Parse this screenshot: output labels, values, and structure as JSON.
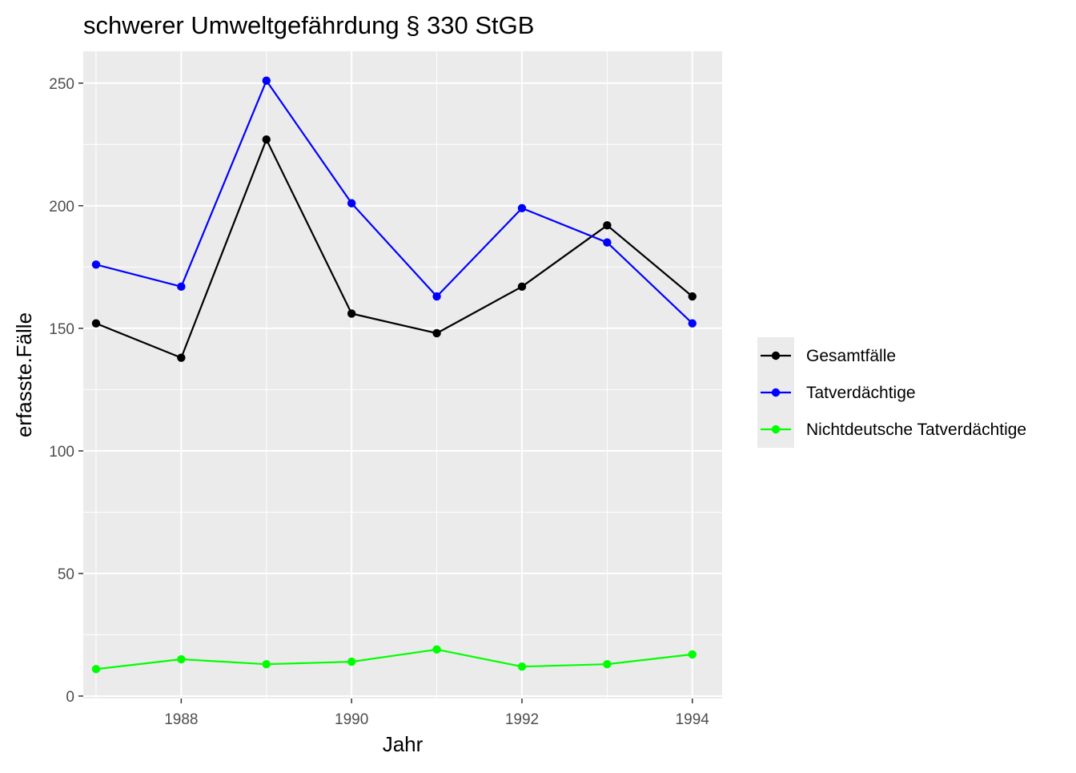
{
  "chart_data": {
    "type": "line",
    "title": "schwerer Umweltgefährdung § 330 StGB",
    "xlabel": "Jahr",
    "ylabel": "erfasste.Fälle",
    "x": [
      1987,
      1988,
      1989,
      1990,
      1991,
      1992,
      1993,
      1994
    ],
    "x_ticks": [
      1988,
      1990,
      1992,
      1994
    ],
    "y_ticks": [
      0,
      50,
      100,
      150,
      200,
      250
    ],
    "xlim": [
      1986.85,
      1994.35
    ],
    "ylim": [
      -1,
      263
    ],
    "grid": true,
    "legend_position": "right",
    "series": [
      {
        "name": "Gesamtfälle",
        "color": "#000000",
        "values": [
          152,
          138,
          227,
          156,
          148,
          167,
          192,
          163
        ]
      },
      {
        "name": "Tatverdächtige",
        "color": "#0000ff",
        "values": [
          176,
          167,
          251,
          201,
          163,
          199,
          185,
          152
        ]
      },
      {
        "name": "Nichtdeutsche Tatverdächtige",
        "color": "#00ff00",
        "values": [
          11,
          15,
          13,
          14,
          19,
          12,
          13,
          17
        ]
      }
    ]
  }
}
